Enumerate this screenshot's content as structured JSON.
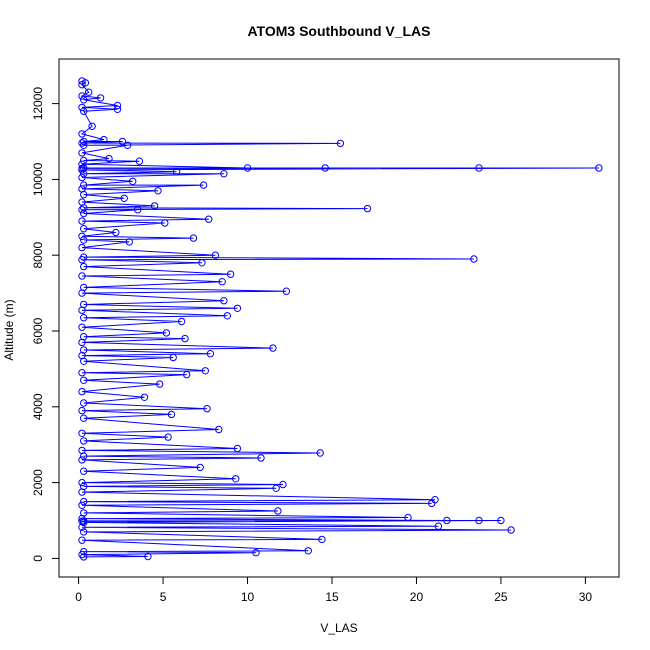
{
  "chart_data": {
    "type": "line",
    "title": "ATOM3 Southbound V_LAS",
    "xlabel": "V_LAS",
    "ylabel": "Altitude (m)",
    "xlim": [
      0,
      31
    ],
    "ylim": [
      0,
      12700
    ],
    "x_ticks": [
      0,
      5,
      10,
      15,
      20,
      25,
      30
    ],
    "y_ticks": [
      0,
      2000,
      4000,
      6000,
      8000,
      10000,
      12000
    ],
    "x_tick_labels": [
      "0",
      "5",
      "10",
      "15",
      "20",
      "25",
      "30"
    ],
    "y_tick_labels": [
      "0",
      "2000",
      "4000",
      "6000",
      "8000",
      "10000",
      "12000"
    ],
    "grid": false,
    "series_color": "#0000FF",
    "marker": "open-circle",
    "series": [
      {
        "values": [
          [
            0.2,
            12600
          ],
          [
            0.4,
            12550
          ],
          [
            0.2,
            12500
          ],
          [
            0.6,
            12300
          ],
          [
            0.2,
            12200
          ],
          [
            1.3,
            12150
          ],
          [
            0.3,
            12100
          ],
          [
            2.3,
            11950
          ],
          [
            0.2,
            11900
          ],
          [
            2.3,
            11850
          ],
          [
            0.3,
            11800
          ],
          [
            0.8,
            11400
          ],
          [
            0.2,
            11200
          ],
          [
            1.5,
            11050
          ],
          [
            0.3,
            11000
          ],
          [
            2.6,
            11000
          ],
          [
            0.2,
            10960
          ],
          [
            15.5,
            10950
          ],
          [
            0.3,
            10900
          ],
          [
            2.9,
            10900
          ],
          [
            0.2,
            10700
          ],
          [
            1.8,
            10550
          ],
          [
            0.3,
            10500
          ],
          [
            3.6,
            10480
          ],
          [
            0.2,
            10400
          ],
          [
            10.0,
            10300
          ],
          [
            0.3,
            10300
          ],
          [
            14.6,
            10300
          ],
          [
            0.2,
            10290
          ],
          [
            23.7,
            10300
          ],
          [
            0.3,
            10300
          ],
          [
            30.8,
            10300
          ],
          [
            0.2,
            10250
          ],
          [
            5.8,
            10200
          ],
          [
            0.3,
            10150
          ],
          [
            8.6,
            10150
          ],
          [
            0.2,
            10050
          ],
          [
            3.2,
            9950
          ],
          [
            0.3,
            9850
          ],
          [
            7.4,
            9850
          ],
          [
            0.2,
            9750
          ],
          [
            4.7,
            9700
          ],
          [
            0.3,
            9600
          ],
          [
            2.7,
            9500
          ],
          [
            0.2,
            9400
          ],
          [
            4.5,
            9300
          ],
          [
            0.3,
            9250
          ],
          [
            17.1,
            9230
          ],
          [
            0.2,
            9200
          ],
          [
            3.5,
            9200
          ],
          [
            0.3,
            9100
          ],
          [
            7.7,
            8950
          ],
          [
            0.2,
            8900
          ],
          [
            5.1,
            8850
          ],
          [
            0.3,
            8700
          ],
          [
            2.2,
            8600
          ],
          [
            0.2,
            8500
          ],
          [
            6.8,
            8450
          ],
          [
            0.3,
            8400
          ],
          [
            3.0,
            8350
          ],
          [
            0.2,
            8200
          ],
          [
            8.1,
            8000
          ],
          [
            0.3,
            7950
          ],
          [
            23.4,
            7900
          ],
          [
            0.2,
            7880
          ],
          [
            7.3,
            7800
          ],
          [
            0.3,
            7700
          ],
          [
            9.0,
            7500
          ],
          [
            0.2,
            7450
          ],
          [
            8.5,
            7300
          ],
          [
            0.3,
            7150
          ],
          [
            12.3,
            7050
          ],
          [
            0.2,
            7000
          ],
          [
            8.6,
            6800
          ],
          [
            0.3,
            6700
          ],
          [
            9.4,
            6600
          ],
          [
            0.2,
            6550
          ],
          [
            8.8,
            6400
          ],
          [
            0.3,
            6350
          ],
          [
            6.1,
            6250
          ],
          [
            0.2,
            6100
          ],
          [
            5.2,
            5950
          ],
          [
            0.3,
            5850
          ],
          [
            6.3,
            5800
          ],
          [
            0.2,
            5700
          ],
          [
            11.5,
            5550
          ],
          [
            0.3,
            5500
          ],
          [
            7.8,
            5400
          ],
          [
            0.2,
            5350
          ],
          [
            5.6,
            5300
          ],
          [
            0.3,
            5200
          ],
          [
            7.5,
            4950
          ],
          [
            0.2,
            4900
          ],
          [
            6.4,
            4850
          ],
          [
            0.3,
            4700
          ],
          [
            4.8,
            4600
          ],
          [
            0.2,
            4400
          ],
          [
            3.9,
            4250
          ],
          [
            0.3,
            4100
          ],
          [
            7.6,
            3950
          ],
          [
            0.2,
            3900
          ],
          [
            5.5,
            3800
          ],
          [
            0.3,
            3700
          ],
          [
            8.3,
            3400
          ],
          [
            0.2,
            3300
          ],
          [
            5.3,
            3200
          ],
          [
            0.3,
            3100
          ],
          [
            9.4,
            2900
          ],
          [
            0.2,
            2850
          ],
          [
            14.3,
            2780
          ],
          [
            0.3,
            2700
          ],
          [
            10.8,
            2650
          ],
          [
            0.2,
            2600
          ],
          [
            7.2,
            2400
          ],
          [
            0.3,
            2300
          ],
          [
            9.3,
            2100
          ],
          [
            0.2,
            2000
          ],
          [
            12.1,
            1950
          ],
          [
            0.3,
            1900
          ],
          [
            11.7,
            1850
          ],
          [
            0.2,
            1750
          ],
          [
            21.1,
            1550
          ],
          [
            0.3,
            1500
          ],
          [
            20.9,
            1450
          ],
          [
            0.2,
            1400
          ],
          [
            11.8,
            1250
          ],
          [
            0.3,
            1200
          ],
          [
            19.5,
            1080
          ],
          [
            0.2,
            1050
          ],
          [
            21.8,
            1000
          ],
          [
            0.3,
            990
          ],
          [
            23.7,
            1000
          ],
          [
            0.2,
            980
          ],
          [
            25.0,
            1000
          ],
          [
            0.3,
            950
          ],
          [
            21.3,
            850
          ],
          [
            0.2,
            820
          ],
          [
            25.6,
            750
          ],
          [
            0.3,
            700
          ],
          [
            14.4,
            500
          ],
          [
            0.2,
            480
          ],
          [
            13.6,
            200
          ],
          [
            0.3,
            180
          ],
          [
            10.5,
            150
          ],
          [
            0.2,
            100
          ],
          [
            4.1,
            50
          ],
          [
            0.3,
            40
          ]
        ]
      }
    ]
  }
}
